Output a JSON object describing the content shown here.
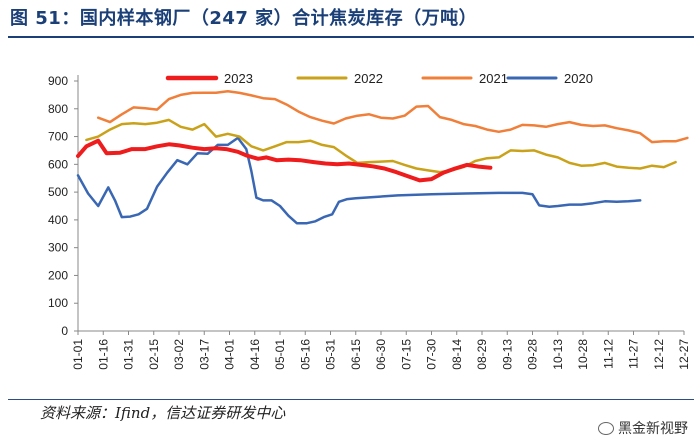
{
  "header": {
    "title": "图 51：国内样本钢厂（247 家）合计焦炭库存（万吨）"
  },
  "footer": {
    "source": "资料来源：Ifind，信达证券研发中心",
    "watermark": "黑金新视野"
  },
  "chart_data": {
    "type": "line",
    "title": "图 51：国内样本钢厂（247 家）合计焦炭库存（万吨）",
    "xlabel": "",
    "ylabel": "",
    "ylim": [
      0,
      900
    ],
    "yticks": [
      0,
      100,
      200,
      300,
      400,
      500,
      600,
      700,
      800,
      900
    ],
    "xticks": [
      "01-01",
      "01-16",
      "01-31",
      "02-15",
      "03-02",
      "03-17",
      "04-01",
      "04-16",
      "05-01",
      "05-16",
      "05-31",
      "06-15",
      "06-30",
      "07-15",
      "07-30",
      "08-14",
      "08-29",
      "09-13",
      "09-28",
      "10-13",
      "10-28",
      "11-12",
      "11-27",
      "12-12",
      "12-27"
    ],
    "x_range_days": [
      0,
      360
    ],
    "legend_position": "top",
    "grid": false,
    "series": [
      {
        "name": "2023",
        "color": "#ee1c1c",
        "width": 4,
        "points": [
          [
            0,
            630
          ],
          [
            5,
            665
          ],
          [
            12,
            685
          ],
          [
            17,
            640
          ],
          [
            25,
            642
          ],
          [
            32,
            655
          ],
          [
            40,
            655
          ],
          [
            47,
            665
          ],
          [
            54,
            672
          ],
          [
            60,
            668
          ],
          [
            68,
            660
          ],
          [
            75,
            655
          ],
          [
            82,
            658
          ],
          [
            88,
            655
          ],
          [
            95,
            645
          ],
          [
            100,
            632
          ],
          [
            107,
            620
          ],
          [
            112,
            625
          ],
          [
            118,
            615
          ],
          [
            125,
            617
          ],
          [
            132,
            615
          ],
          [
            140,
            608
          ],
          [
            147,
            603
          ],
          [
            154,
            600
          ],
          [
            161,
            603
          ],
          [
            168,
            598
          ],
          [
            175,
            593
          ],
          [
            182,
            585
          ],
          [
            189,
            572
          ],
          [
            196,
            557
          ],
          [
            203,
            542
          ],
          [
            210,
            547
          ],
          [
            217,
            570
          ],
          [
            224,
            585
          ],
          [
            231,
            598
          ],
          [
            238,
            592
          ],
          [
            245,
            588
          ]
        ]
      },
      {
        "name": "2022",
        "color": "#c9a21a",
        "width": 2.5,
        "points": [
          [
            5,
            688
          ],
          [
            12,
            700
          ],
          [
            19,
            725
          ],
          [
            26,
            745
          ],
          [
            33,
            748
          ],
          [
            40,
            745
          ],
          [
            47,
            750
          ],
          [
            54,
            760
          ],
          [
            61,
            735
          ],
          [
            68,
            725
          ],
          [
            75,
            745
          ],
          [
            82,
            700
          ],
          [
            89,
            710
          ],
          [
            96,
            700
          ],
          [
            103,
            665
          ],
          [
            110,
            650
          ],
          [
            117,
            665
          ],
          [
            124,
            680
          ],
          [
            131,
            680
          ],
          [
            138,
            685
          ],
          [
            145,
            670
          ],
          [
            152,
            662
          ],
          [
            159,
            632
          ],
          [
            166,
            605
          ],
          [
            173,
            608
          ],
          [
            180,
            610
          ],
          [
            187,
            612
          ],
          [
            194,
            598
          ],
          [
            201,
            585
          ],
          [
            208,
            578
          ],
          [
            215,
            572
          ],
          [
            222,
            578
          ],
          [
            229,
            590
          ],
          [
            236,
            612
          ],
          [
            243,
            622
          ],
          [
            250,
            625
          ],
          [
            257,
            650
          ],
          [
            264,
            648
          ],
          [
            271,
            650
          ],
          [
            278,
            635
          ],
          [
            285,
            625
          ],
          [
            292,
            605
          ],
          [
            299,
            595
          ],
          [
            306,
            597
          ],
          [
            313,
            605
          ],
          [
            320,
            592
          ],
          [
            327,
            588
          ],
          [
            334,
            585
          ],
          [
            341,
            595
          ],
          [
            348,
            590
          ],
          [
            355,
            608
          ]
        ]
      },
      {
        "name": "2021",
        "color": "#f07f3a",
        "width": 2.5,
        "points": [
          [
            12,
            768
          ],
          [
            19,
            752
          ],
          [
            26,
            780
          ],
          [
            33,
            805
          ],
          [
            40,
            802
          ],
          [
            47,
            797
          ],
          [
            54,
            835
          ],
          [
            61,
            850
          ],
          [
            68,
            857
          ],
          [
            75,
            858
          ],
          [
            82,
            858
          ],
          [
            89,
            863
          ],
          [
            96,
            857
          ],
          [
            103,
            848
          ],
          [
            110,
            838
          ],
          [
            117,
            835
          ],
          [
            124,
            815
          ],
          [
            131,
            790
          ],
          [
            138,
            770
          ],
          [
            145,
            757
          ],
          [
            152,
            747
          ],
          [
            159,
            765
          ],
          [
            166,
            775
          ],
          [
            173,
            780
          ],
          [
            180,
            768
          ],
          [
            187,
            765
          ],
          [
            194,
            775
          ],
          [
            201,
            808
          ],
          [
            208,
            810
          ],
          [
            215,
            770
          ],
          [
            222,
            760
          ],
          [
            229,
            745
          ],
          [
            236,
            738
          ],
          [
            243,
            725
          ],
          [
            250,
            717
          ],
          [
            257,
            725
          ],
          [
            264,
            742
          ],
          [
            271,
            740
          ],
          [
            278,
            735
          ],
          [
            285,
            745
          ],
          [
            292,
            752
          ],
          [
            299,
            742
          ],
          [
            306,
            738
          ],
          [
            313,
            740
          ],
          [
            320,
            730
          ],
          [
            327,
            722
          ],
          [
            334,
            712
          ],
          [
            341,
            680
          ],
          [
            348,
            683
          ],
          [
            355,
            683
          ],
          [
            362,
            695
          ]
        ]
      },
      {
        "name": "2020",
        "color": "#3a67b3",
        "width": 2.5,
        "points": [
          [
            0,
            560
          ],
          [
            6,
            495
          ],
          [
            12,
            450
          ],
          [
            18,
            517
          ],
          [
            22,
            470
          ],
          [
            26,
            410
          ],
          [
            31,
            412
          ],
          [
            36,
            420
          ],
          [
            41,
            440
          ],
          [
            47,
            520
          ],
          [
            53,
            570
          ],
          [
            59,
            615
          ],
          [
            65,
            600
          ],
          [
            71,
            640
          ],
          [
            77,
            638
          ],
          [
            83,
            670
          ],
          [
            89,
            670
          ],
          [
            95,
            695
          ],
          [
            100,
            655
          ],
          [
            103,
            575
          ],
          [
            106,
            480
          ],
          [
            110,
            470
          ],
          [
            115,
            470
          ],
          [
            120,
            450
          ],
          [
            125,
            415
          ],
          [
            130,
            388
          ],
          [
            136,
            388
          ],
          [
            141,
            395
          ],
          [
            146,
            410
          ],
          [
            151,
            420
          ],
          [
            155,
            465
          ],
          [
            160,
            475
          ],
          [
            165,
            478
          ],
          [
            175,
            482
          ],
          [
            190,
            488
          ],
          [
            210,
            492
          ],
          [
            230,
            495
          ],
          [
            250,
            497
          ],
          [
            264,
            497
          ],
          [
            270,
            492
          ],
          [
            274,
            452
          ],
          [
            280,
            447
          ],
          [
            285,
            450
          ],
          [
            292,
            455
          ],
          [
            299,
            455
          ],
          [
            306,
            460
          ],
          [
            313,
            467
          ],
          [
            320,
            465
          ],
          [
            327,
            467
          ],
          [
            334,
            470
          ]
        ]
      }
    ]
  }
}
